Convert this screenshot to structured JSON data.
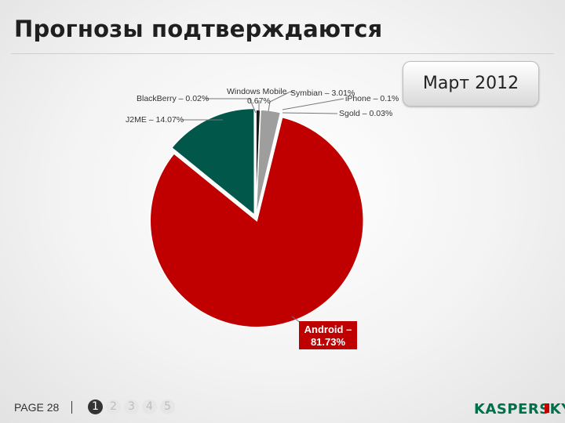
{
  "title": "Прогнозы подтверждаются",
  "date_badge": "Март 2012",
  "chart_data": {
    "type": "pie",
    "slices": [
      {
        "name": "Windows Mobile",
        "value": 0.67,
        "label": "Windows Mobile – 0.67%",
        "color": "#1a1a1a"
      },
      {
        "name": "Symbian",
        "value": 3.01,
        "label": "Symbian – 3.01%",
        "color": "#9e9e9e"
      },
      {
        "name": "iPhone",
        "value": 0.1,
        "label": "iPhone – 0.1%",
        "color": "#5a5a5a"
      },
      {
        "name": "Sgold",
        "value": 0.03,
        "label": "Sgold – 0.03%",
        "color": "#444444"
      },
      {
        "name": "Android",
        "value": 81.73,
        "label": "Android – 81.73%",
        "color": "#c00000"
      },
      {
        "name": "J2ME",
        "value": 14.07,
        "label": "J2ME – 14.07%",
        "color": "#00574a"
      },
      {
        "name": "BlackBerry",
        "value": 0.02,
        "label": "BlackBerry – 0.02%",
        "color": "#2a2a2a"
      }
    ],
    "labels": {
      "blackberry": "BlackBerry – 0.02%",
      "j2me": "J2ME – 14.07%",
      "winmobile_line1": "Windows Mobile –",
      "winmobile_line2": "0.67%",
      "symbian": "Symbian – 3.01%",
      "iphone": "iPhone – 0.1%",
      "sgold": "Sgold – 0.03%",
      "android_line1": "Android –",
      "android_line2": "81.73%"
    }
  },
  "footer": {
    "page_label": "PAGE  28",
    "pages": [
      "1",
      "2",
      "3",
      "4",
      "5"
    ],
    "active_page": "1",
    "logo_text": "KASPERSKY"
  }
}
